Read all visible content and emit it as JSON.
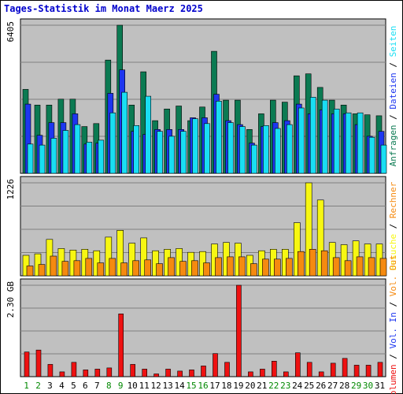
{
  "chart_data": {
    "type": "bar",
    "title": "Tages-Statistik im Monat Maerz 2025",
    "days": [
      "1",
      "2",
      "3",
      "4",
      "5",
      "6",
      "7",
      "8",
      "9",
      "10",
      "11",
      "12",
      "13",
      "14",
      "15",
      "16",
      "17",
      "18",
      "19",
      "20",
      "21",
      "22",
      "23",
      "24",
      "25",
      "26",
      "27",
      "28",
      "29",
      "30",
      "31"
    ],
    "weekend_days": [
      1,
      2,
      8,
      9,
      15,
      16,
      22,
      23,
      29,
      30
    ],
    "colors": {
      "background": "#c0c0c0",
      "title": "#0000cc",
      "weekday_label": "#000000",
      "weekend_label": "#008800",
      "anfragen": "#0b7a52",
      "dateien": "#1d36f0",
      "seiten": "#19def3",
      "besuche": "#f7f712",
      "rechner": "#f58a10",
      "volumen": "#ee1111"
    },
    "panels": [
      {
        "id": "requests",
        "max_label": "6405",
        "ymax": 6405,
        "legend": [
          {
            "text": "Anfragen",
            "color": "#0b7a52"
          },
          {
            "text": " / ",
            "color": "#000000"
          },
          {
            "text": "Dateien",
            "color": "#1d36f0"
          },
          {
            "text": " / ",
            "color": "#000000"
          },
          {
            "text": "Seiten",
            "color": "#19def3"
          }
        ],
        "series": [
          {
            "name": "Anfragen",
            "color": "#0b7a52",
            "values": [
              3631,
              2954,
              2954,
              3208,
              3208,
              2025,
              2152,
              4898,
              6405,
              2954,
              4392,
              2278,
              2785,
              2912,
              2278,
              2870,
              5278,
              3166,
              3166,
              1899,
              2574,
              3166,
              3081,
              4218,
              4303,
              3716,
              3166,
              2954,
              2574,
              2532,
              2489
            ]
          },
          {
            "name": "Dateien",
            "color": "#1d36f0",
            "values": [
              2996,
              1646,
              2194,
              2194,
              2574,
              1266,
              1306,
              3462,
              4473,
              1815,
              1688,
              1899,
              1899,
              1899,
              2405,
              2405,
              3420,
              2278,
              2110,
              1308,
              2025,
              2194,
              2278,
              2996,
              2574,
              2743,
              2574,
              2574,
              2110,
              1604,
              1815
            ]
          },
          {
            "name": "Seiten",
            "color": "#19def3",
            "values": [
              1266,
              1224,
              1520,
              1857,
              2110,
              1350,
              1435,
              2616,
              3505,
              2068,
              3336,
              1815,
              1604,
              1815,
              2362,
              2152,
              3124,
              2194,
              2025,
              1224,
              2068,
              1942,
              2110,
              2827,
              3293,
              3166,
              2785,
              2616,
              2616,
              1561,
              1224
            ]
          }
        ]
      },
      {
        "id": "visits",
        "max_label": "1226",
        "ymax": 1226,
        "legend": [
          {
            "text": "Besuche",
            "color": "#f7f712"
          },
          {
            "text": " / ",
            "color": "#000000"
          },
          {
            "text": "Rechner",
            "color": "#f58a10"
          }
        ],
        "series": [
          {
            "name": "Besuche",
            "color": "#f7f712",
            "values": [
              270,
              290,
              480,
              360,
              340,
              350,
              330,
              510,
              600,
              430,
              500,
              330,
              350,
              360,
              310,
              320,
              420,
              440,
              430,
              270,
              330,
              350,
              350,
              700,
              1226,
              1000,
              440,
              410,
              460,
              420,
              420
            ]
          },
          {
            "name": "Rechner",
            "color": "#f58a10",
            "values": [
              130,
              150,
              260,
              190,
              200,
              230,
              170,
              230,
              170,
              200,
              210,
              160,
              240,
              190,
              200,
              170,
              240,
              250,
              250,
              160,
              220,
              220,
              230,
              320,
              350,
              330,
              240,
              200,
              250,
              240,
              230
            ]
          }
        ]
      },
      {
        "id": "volume",
        "max_label": "2.30 GB",
        "ymax": 2.3,
        "legend": [
          {
            "text": "Volumen",
            "color": "#ee1111"
          },
          {
            "text": " / ",
            "color": "#000000"
          },
          {
            "text": "Vol. In",
            "color": "#1d36f0"
          },
          {
            "text": " / ",
            "color": "#000000"
          },
          {
            "text": "Vol. Out",
            "color": "#f58a10"
          }
        ],
        "series": [
          {
            "name": "Volumen",
            "color": "#ee1111",
            "values": [
              0.62,
              0.67,
              0.31,
              0.12,
              0.36,
              0.17,
              0.19,
              0.22,
              1.58,
              0.31,
              0.19,
              0.07,
              0.19,
              0.14,
              0.17,
              0.27,
              0.58,
              0.36,
              2.3,
              0.12,
              0.19,
              0.39,
              0.12,
              0.6,
              0.36,
              0.12,
              0.34,
              0.46,
              0.29,
              0.29,
              0.36
            ]
          }
        ]
      }
    ]
  }
}
